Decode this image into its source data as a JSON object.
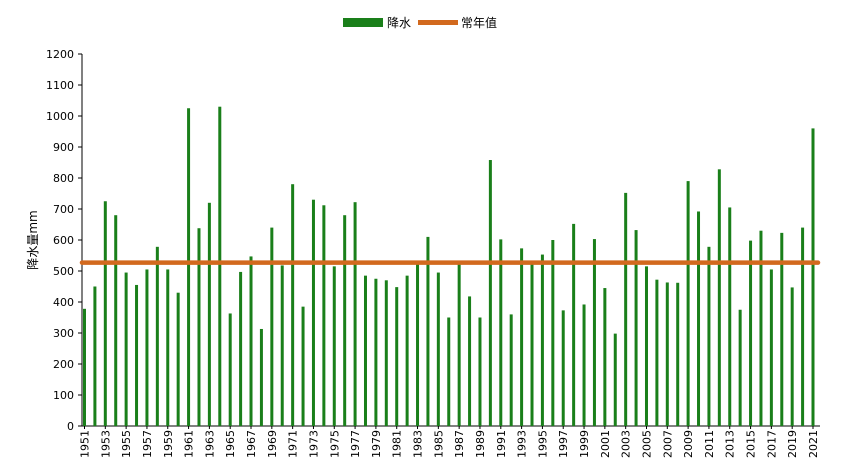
{
  "chart_data": {
    "type": "bar",
    "title": "",
    "xlabel": "",
    "ylabel": "降水量mm",
    "ylim": [
      0,
      1200
    ],
    "yticks": [
      0,
      100,
      200,
      300,
      400,
      500,
      600,
      700,
      800,
      900,
      1000,
      1100,
      1200
    ],
    "grid": false,
    "legend": {
      "placement": "top-center",
      "entries": [
        "降水",
        "常年值"
      ]
    },
    "categories": [
      "1951",
      "1952",
      "1953",
      "1954",
      "1955",
      "1956",
      "1957",
      "1958",
      "1959",
      "1960",
      "1961",
      "1962",
      "1963",
      "1964",
      "1965",
      "1966",
      "1967",
      "1968",
      "1969",
      "1970",
      "1971",
      "1972",
      "1973",
      "1974",
      "1975",
      "1976",
      "1977",
      "1978",
      "1979",
      "1980",
      "1981",
      "1982",
      "1983",
      "1984",
      "1985",
      "1986",
      "1987",
      "1988",
      "1989",
      "1990",
      "1991",
      "1992",
      "1993",
      "1994",
      "1995",
      "1996",
      "1997",
      "1998",
      "1999",
      "2000",
      "2001",
      "2002",
      "2003",
      "2004",
      "2005",
      "2006",
      "2007",
      "2008",
      "2009",
      "2010",
      "2011",
      "2012",
      "2013",
      "2014",
      "2015",
      "2016",
      "2017",
      "2018",
      "2019",
      "2020",
      "2021"
    ],
    "x_tick_labels": [
      "1951",
      "1953",
      "1955",
      "1957",
      "1959",
      "1961",
      "1963",
      "1965",
      "1967",
      "1969",
      "1971",
      "1973",
      "1975",
      "1977",
      "1979",
      "1981",
      "1983",
      "1985",
      "1987",
      "1989",
      "1991",
      "1993",
      "1995",
      "1997",
      "1999",
      "2001",
      "2003",
      "2005",
      "2007",
      "2009",
      "2011",
      "2013",
      "2015",
      "2017",
      "2019",
      "2021"
    ],
    "series": [
      {
        "name": "降水",
        "type": "bar",
        "color": "#1a7f1a",
        "values": [
          378,
          450,
          725,
          680,
          495,
          455,
          505,
          578,
          505,
          430,
          1025,
          638,
          720,
          1030,
          363,
          497,
          547,
          313,
          640,
          518,
          780,
          385,
          730,
          712,
          515,
          680,
          722,
          485,
          475,
          470,
          448,
          485,
          522,
          610,
          495,
          350,
          522,
          418,
          350,
          858,
          602,
          360,
          573,
          532,
          553,
          600,
          373,
          652,
          392,
          603,
          445,
          298,
          752,
          632,
          515,
          472,
          463,
          462,
          790,
          692,
          578,
          828,
          705,
          375,
          598,
          630,
          505,
          623,
          447,
          640,
          960
        ]
      },
      {
        "name": "常年值",
        "type": "line",
        "color": "#d2691e",
        "value": 527
      }
    ]
  }
}
